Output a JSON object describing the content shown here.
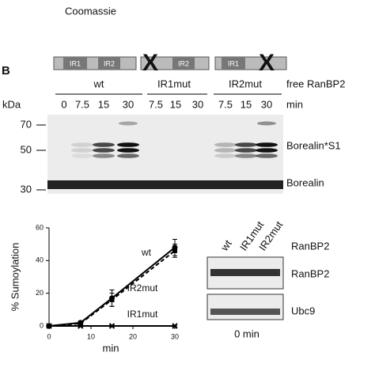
{
  "header": {
    "stain": "Coomassie",
    "panel": "B"
  },
  "constructs": [
    {
      "domains": [
        "IR1",
        "IR2"
      ]
    },
    {
      "domains": [
        "IR2"
      ]
    },
    {
      "domains": [
        "IR1"
      ]
    }
  ],
  "blot": {
    "groups": [
      "wt",
      "IR1mut",
      "IR2mut"
    ],
    "condition": "free RanBP2",
    "kda_label": "kDa",
    "times": [
      0,
      7.5,
      15,
      30,
      7.5,
      15,
      30,
      7.5,
      15,
      30
    ],
    "time_unit": "min",
    "markers": [
      70,
      50,
      30
    ],
    "bands": [
      "Borealin*S1",
      "Borealin"
    ]
  },
  "inset": {
    "lanes": [
      "wt",
      "IR1mut",
      "IR2mut"
    ],
    "condition": "RanBP2",
    "rows": [
      "RanBP2",
      "Ubc9"
    ],
    "caption": "0 min"
  },
  "chart_data": {
    "type": "line",
    "x_label": "min",
    "y_label": "% Sumoylation",
    "x": [
      0,
      7.5,
      15,
      30
    ],
    "xlim": [
      0,
      30
    ],
    "ylim": [
      0,
      60
    ],
    "xticks": [
      0,
      10,
      20,
      30
    ],
    "yticks": [
      0,
      20,
      40,
      60
    ],
    "series": [
      {
        "name": "wt",
        "color": "#000000",
        "dashed": false,
        "marker": "circle",
        "values": [
          0,
          2,
          17,
          48
        ],
        "errors": [
          0,
          1,
          5,
          5
        ]
      },
      {
        "name": "IR2mut",
        "color": "#000000",
        "dashed": true,
        "marker": "square",
        "values": [
          0,
          1.5,
          16,
          46
        ],
        "errors": [
          0,
          1,
          4,
          4
        ]
      },
      {
        "name": "IR1mut",
        "color": "#000000",
        "dashed": false,
        "marker": "cross",
        "values": [
          0,
          0,
          0,
          0
        ],
        "errors": [
          0,
          0,
          0,
          0
        ]
      }
    ]
  }
}
